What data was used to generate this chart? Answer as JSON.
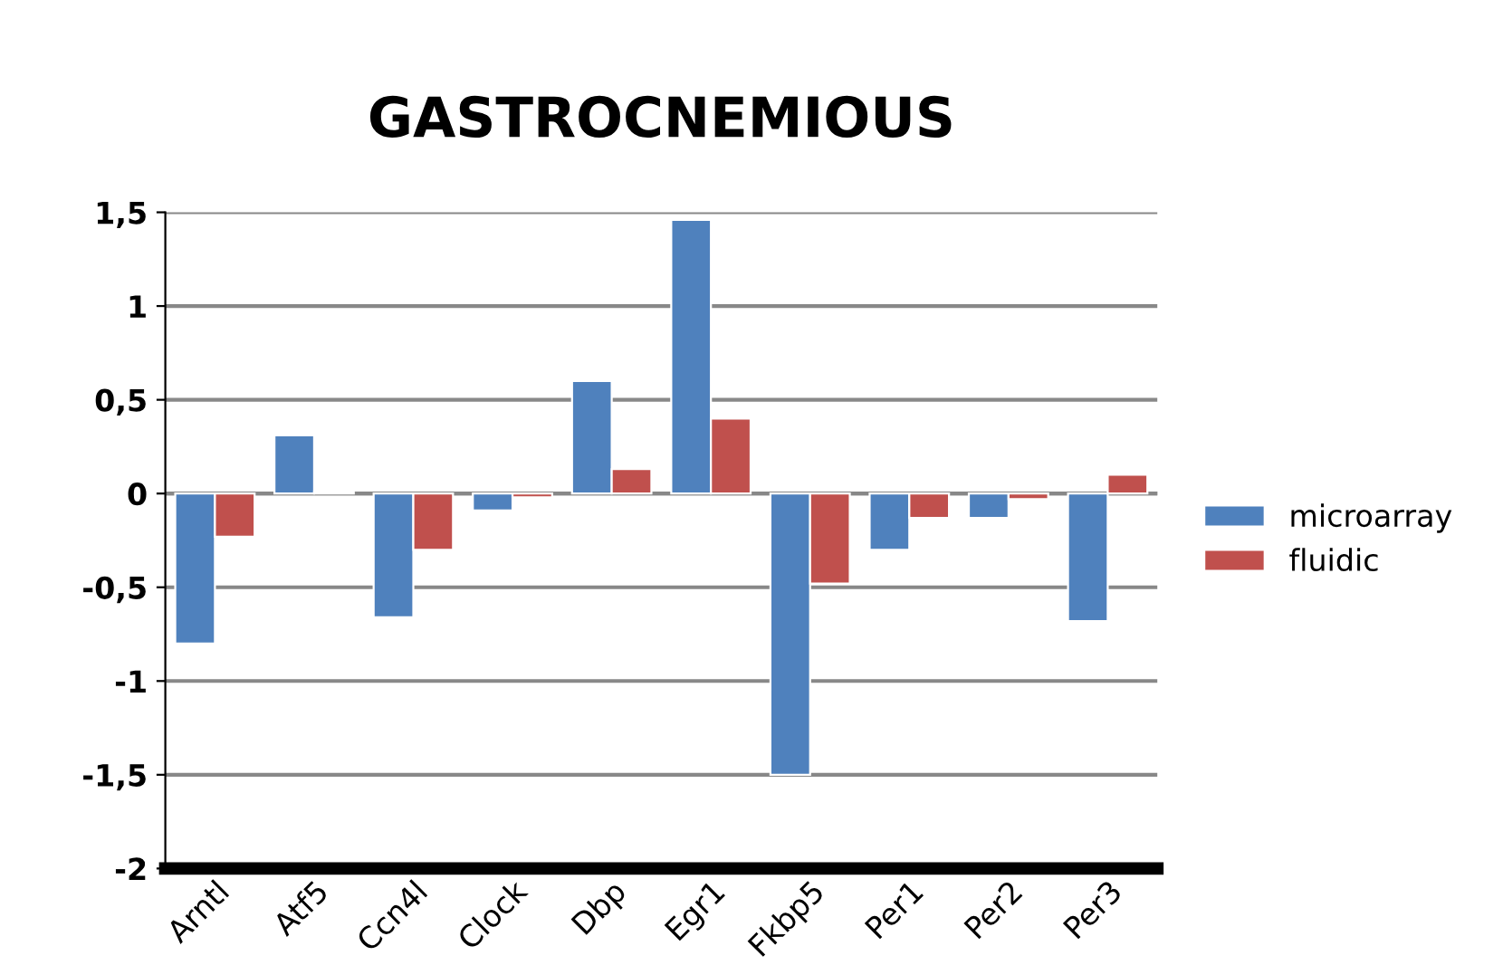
{
  "chart_data": {
    "type": "bar",
    "title": "GASTROCNEMIOUS",
    "categories": [
      "Arntl",
      "Atf5",
      "Ccn4l",
      "Clock",
      "Dbp",
      "Egr1",
      "Fkbp5",
      "Per1",
      "Per2",
      "Per3"
    ],
    "series": [
      {
        "name": "microarray",
        "color": "#4f81bd",
        "values": [
          -0.8,
          0.31,
          -0.66,
          -0.09,
          0.6,
          1.46,
          -1.5,
          -0.3,
          -0.13,
          -0.68
        ]
      },
      {
        "name": "fluidic",
        "color": "#c0504d",
        "values": [
          -0.23,
          0.01,
          -0.3,
          -0.02,
          0.13,
          0.4,
          -0.48,
          -0.13,
          -0.03,
          0.1
        ]
      }
    ],
    "ylim": [
      -2,
      1.5
    ],
    "yticks": [
      {
        "value": -2,
        "label": "-2"
      },
      {
        "value": -1.5,
        "label": "-1,5"
      },
      {
        "value": -1,
        "label": "-1"
      },
      {
        "value": -0.5,
        "label": "-0,5"
      },
      {
        "value": 0,
        "label": "0"
      },
      {
        "value": 0.5,
        "label": "0,5"
      },
      {
        "value": 1,
        "label": "1"
      },
      {
        "value": 1.5,
        "label": "1,5"
      }
    ],
    "grid": "y",
    "legend": "right"
  }
}
